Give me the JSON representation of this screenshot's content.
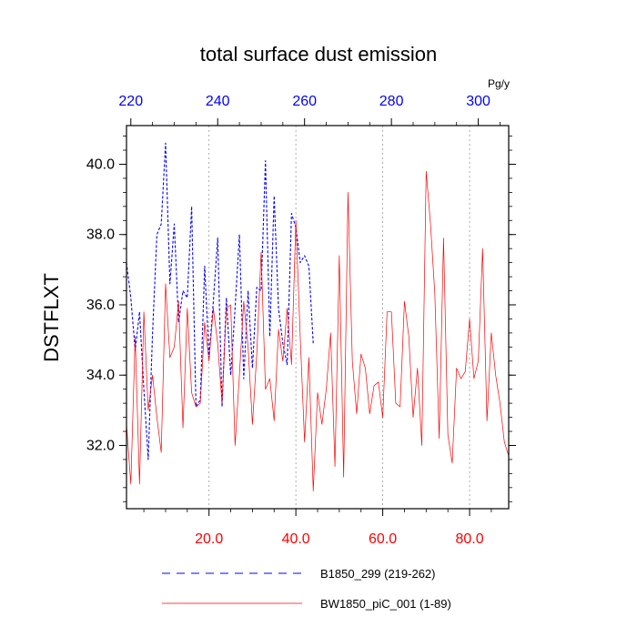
{
  "chart_data": {
    "type": "line",
    "title": "total surface dust emission",
    "ylabel": "DSTFLXT",
    "top_axis_unit": "Pg/y",
    "ylim": [
      30.2,
      41.1
    ],
    "yticks": [
      32.0,
      34.0,
      36.0,
      38.0,
      40.0
    ],
    "ytick_labels": [
      "32.0",
      "34.0",
      "36.0",
      "38.0",
      "40.0"
    ],
    "x_bottom": {
      "range": [
        1,
        89
      ],
      "ticks": [
        20,
        40,
        60,
        80
      ],
      "tick_labels": [
        "20.0",
        "40.0",
        "60.0",
        "80.0"
      ],
      "color": "#ff0000"
    },
    "x_top": {
      "range": [
        219,
        307
      ],
      "ticks": [
        220,
        240,
        260,
        280,
        300
      ],
      "tick_labels": [
        "220",
        "240",
        "260",
        "280",
        "300"
      ],
      "color": "#0000ff"
    },
    "grid": "vertical dotted",
    "legend_position": "bottom",
    "series": [
      {
        "name": "B1850_299 (219-262)",
        "color": "#0000ff",
        "style": "dashed",
        "x_axis": "top",
        "x_start": 219,
        "values": [
          37.2,
          36.2,
          34.7,
          35.8,
          33.6,
          31.6,
          35.2,
          38.0,
          38.3,
          40.6,
          36.6,
          38.3,
          35.5,
          36.4,
          36.2,
          38.8,
          33.1,
          33.3,
          37.1,
          34.5,
          36.1,
          37.9,
          33.1,
          36.2,
          34.0,
          35.9,
          38.0,
          33.9,
          36.4,
          34.2,
          36.5,
          36.4,
          40.1,
          35.1,
          39.1,
          35.9,
          34.9,
          34.3,
          38.6,
          38.2,
          37.2,
          37.4,
          37.1,
          34.9
        ]
      },
      {
        "name": "BW1850_piC_001 (1-89)",
        "color": "#ff0000",
        "style": "solid",
        "x_axis": "bottom",
        "x_start": 1,
        "values": [
          32.6,
          30.9,
          35.1,
          30.9,
          35.8,
          33.0,
          34.0,
          32.8,
          31.8,
          36.6,
          34.5,
          34.8,
          36.1,
          32.5,
          35.9,
          33.5,
          33.1,
          33.2,
          35.5,
          34.4,
          35.9,
          34.9,
          33.2,
          35.9,
          36.0,
          32.0,
          34.0,
          36.1,
          34.8,
          32.6,
          34.6,
          37.5,
          33.6,
          33.9,
          32.7,
          35.3,
          34.4,
          35.9,
          34.3,
          38.4,
          35.1,
          32.1,
          34.5,
          30.7,
          33.5,
          32.6,
          33.6,
          35.2,
          31.4,
          37.4,
          31.1,
          39.2,
          34.4,
          32.9,
          34.6,
          34.2,
          32.9,
          33.7,
          33.8,
          32.8,
          35.8,
          35.8,
          33.2,
          33.1,
          36.1,
          35.1,
          32.8,
          34.2,
          32.0,
          39.8,
          38.3,
          36.3,
          32.2,
          37.9,
          32.3,
          31.5,
          34.2,
          33.9,
          34.1,
          35.6,
          33.9,
          34.4,
          37.6,
          32.7,
          35.2,
          34.0,
          33.2,
          32.1,
          31.7
        ]
      }
    ]
  }
}
